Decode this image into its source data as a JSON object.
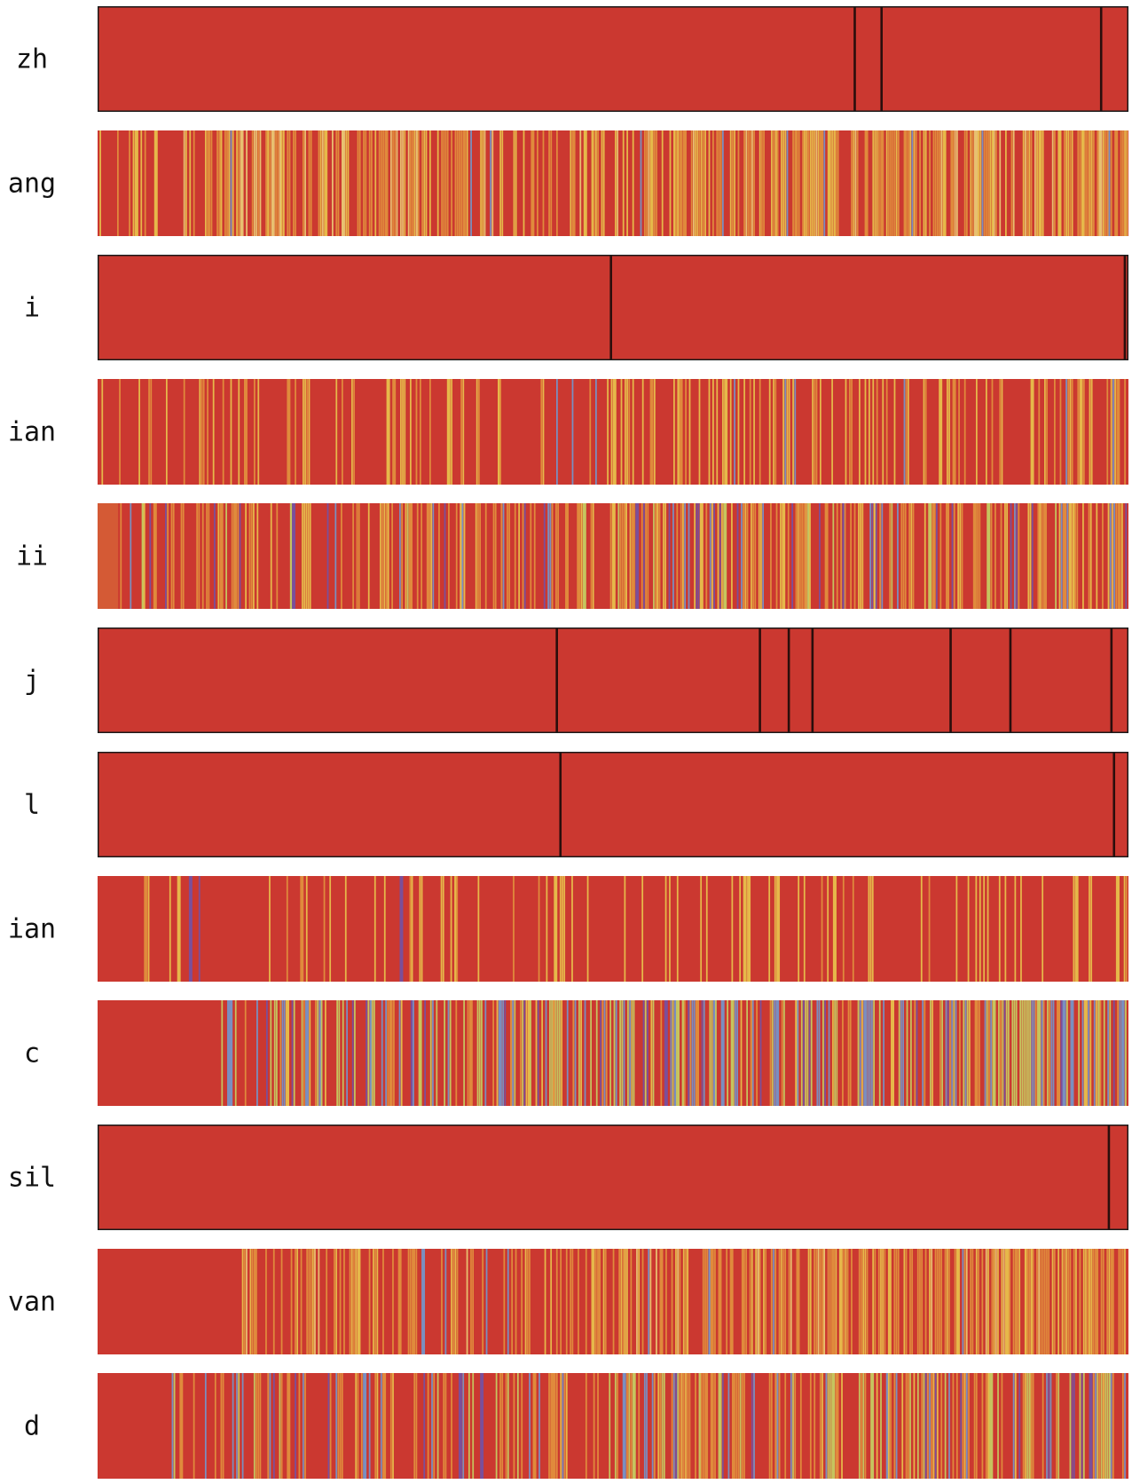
{
  "chart_data": {
    "type": "heatmap",
    "title": "",
    "xlabel": "",
    "ylabel": "",
    "grid": false,
    "colors": {
      "base": "#cb3830",
      "boundary": "#2a0e0c",
      "frame": "#1a1a1a",
      "alt_orange": "#e08a3c",
      "alt_yellow": "#e6b84a",
      "alt_lime": "#c6c45e",
      "alt_blue": "#7a8fc0",
      "alt_purple": "#7b4f9a",
      "alt_pale": "#e8c070",
      "first_band": "#d45a35"
    },
    "rows": [
      {
        "label": "zh",
        "style": "segments",
        "boundaries": [
          0.7345,
          0.7605,
          0.9735
        ]
      },
      {
        "label": "ang",
        "style": "stripes",
        "density": 0.55,
        "palette": [
          "alt_orange",
          "alt_yellow",
          "alt_pale",
          "alt_blue"
        ],
        "weights": [
          0.5,
          0.35,
          0.12,
          0.03
        ],
        "start": 0.0
      },
      {
        "label": "i",
        "style": "segments",
        "boundaries": [
          0.498,
          0.9965
        ]
      },
      {
        "label": "ian",
        "style": "stripes",
        "density": 0.28,
        "palette": [
          "alt_yellow",
          "alt_orange",
          "alt_blue"
        ],
        "weights": [
          0.6,
          0.36,
          0.04
        ],
        "start": 0.0
      },
      {
        "label": "ii",
        "style": "stripes",
        "density": 0.45,
        "palette": [
          "alt_orange",
          "alt_yellow",
          "alt_blue",
          "alt_purple",
          "alt_lime"
        ],
        "weights": [
          0.45,
          0.3,
          0.1,
          0.08,
          0.07
        ],
        "start": 0.02
      },
      {
        "label": "j",
        "style": "segments",
        "boundaries": [
          0.4455,
          0.6425,
          0.6705,
          0.6935,
          0.8275,
          0.8855,
          0.9835
        ]
      },
      {
        "label": "l",
        "style": "segments",
        "boundaries": [
          0.449,
          0.986
        ]
      },
      {
        "label": "ian",
        "style": "stripes",
        "density": 0.16,
        "palette": [
          "alt_yellow",
          "alt_orange",
          "alt_purple"
        ],
        "weights": [
          0.8,
          0.17,
          0.03
        ],
        "start": 0.045
      },
      {
        "label": "c",
        "style": "stripes",
        "density": 0.55,
        "palette": [
          "alt_lime",
          "alt_blue",
          "alt_orange",
          "alt_purple",
          "alt_yellow"
        ],
        "weights": [
          0.38,
          0.3,
          0.16,
          0.08,
          0.08
        ],
        "start": 0.12
      },
      {
        "label": "sil",
        "style": "segments",
        "boundaries": [
          0.981
        ]
      },
      {
        "label": "van",
        "style": "stripes",
        "density": 0.5,
        "palette": [
          "alt_orange",
          "alt_yellow",
          "alt_pale",
          "alt_blue"
        ],
        "weights": [
          0.55,
          0.3,
          0.1,
          0.05
        ],
        "start": 0.14
      },
      {
        "label": "d",
        "style": "stripes",
        "density": 0.5,
        "palette": [
          "alt_orange",
          "alt_lime",
          "alt_blue",
          "alt_purple",
          "alt_yellow"
        ],
        "weights": [
          0.45,
          0.25,
          0.14,
          0.08,
          0.08
        ],
        "start": 0.07
      }
    ]
  }
}
